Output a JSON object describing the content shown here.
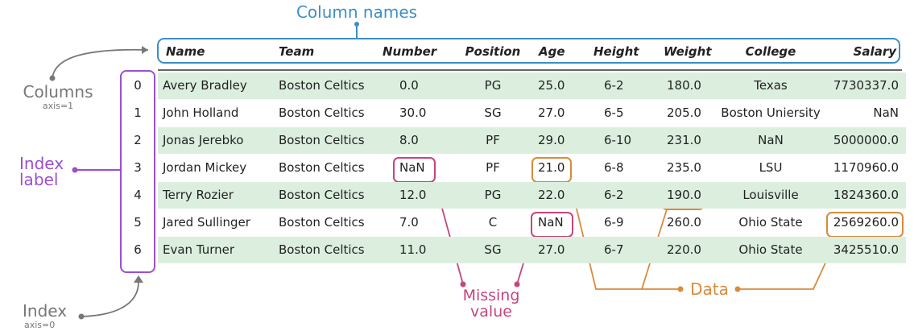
{
  "annotations": {
    "column_names": "Column names",
    "columns": "Columns",
    "columns_axis": "axis=1",
    "index_label_line1": "Index",
    "index_label_line2": "label",
    "index": "Index",
    "index_axis": "axis=0",
    "missing_line1": "Missing",
    "missing_line2": "value",
    "data": "Data"
  },
  "colors": {
    "blue": "#3b8fc6",
    "purple": "#9a4fd0",
    "pink": "#c5457c",
    "orange": "#d98b3a",
    "gray": "#777777",
    "row_shade": "#dcefdf"
  },
  "table": {
    "columns": [
      "Name",
      "Team",
      "Number",
      "Position",
      "Age",
      "Height",
      "Weight",
      "College",
      "Salary"
    ],
    "index": [
      "0",
      "1",
      "2",
      "3",
      "4",
      "5",
      "6"
    ],
    "rows": [
      [
        "Avery Bradley",
        "Boston Celtics",
        "0.0",
        "PG",
        "25.0",
        "6-2",
        "180.0",
        "Texas",
        "7730337.0"
      ],
      [
        "John Holland",
        "Boston Celtics",
        "30.0",
        "SG",
        "27.0",
        "6-5",
        "205.0",
        "Boston Uniersity",
        "NaN"
      ],
      [
        "Jonas Jerebko",
        "Boston Celtics",
        "8.0",
        "PF",
        "29.0",
        "6-10",
        "231.0",
        "NaN",
        "5000000.0"
      ],
      [
        "Jordan Mickey",
        "Boston Celtics",
        "NaN",
        "PF",
        "21.0",
        "6-8",
        "235.0",
        "LSU",
        "1170960.0"
      ],
      [
        "Terry Rozier",
        "Boston Celtics",
        "12.0",
        "PG",
        "22.0",
        "6-2",
        "190.0",
        "Louisville",
        "1824360.0"
      ],
      [
        "Jared Sullinger",
        "Boston Celtics",
        "7.0",
        "C",
        "NaN",
        "6-9",
        "260.0",
        "Ohio State",
        "2569260.0"
      ],
      [
        "Evan Turner",
        "Boston Celtics",
        "11.0",
        "SG",
        "27.0",
        "6-7",
        "220.0",
        "Ohio State",
        "3425510.0"
      ]
    ]
  }
}
